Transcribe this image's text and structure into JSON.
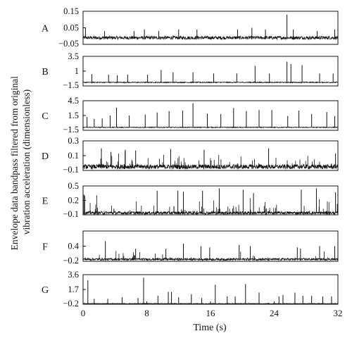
{
  "chart_data": {
    "type": "line",
    "ylabel": "Envelope data bandpass filtered from original vibration acceleration (dimensionless)",
    "xlabel": "Time (s)",
    "xlim": [
      0,
      32
    ],
    "x_ticks": [
      "0",
      "8",
      "16",
      "24",
      "32"
    ],
    "grid": false,
    "panels": [
      {
        "label": "A",
        "ylim": [
          -0.05,
          0.15
        ],
        "y_ticks": [
          "0.15",
          "0.05",
          "−0.05"
        ],
        "baseline": -0.01,
        "noise": 0.01,
        "spikes": [
          [
            0.3,
            0.05
          ],
          [
            2.7,
            0.03
          ],
          [
            6.4,
            0.03
          ],
          [
            7.7,
            0.04
          ],
          [
            9.5,
            0.03
          ],
          [
            12.0,
            0.04
          ],
          [
            14.3,
            0.04
          ],
          [
            19.4,
            0.04
          ],
          [
            21.2,
            0.05
          ],
          [
            22.9,
            0.04
          ],
          [
            25.6,
            0.13
          ],
          [
            26.4,
            0.04
          ],
          [
            29.4,
            0.03
          ],
          [
            31.6,
            0.04
          ]
        ]
      },
      {
        "label": "B",
        "ylim": [
          -1.5,
          3.5
        ],
        "y_ticks": [
          "3.5",
          "1",
          "−1.5"
        ],
        "baseline": -0.9,
        "noise": 0.08,
        "spikes": [
          [
            1.1,
            0.5
          ],
          [
            3.2,
            0.4
          ],
          [
            4.3,
            0.3
          ],
          [
            5.6,
            0.4
          ],
          [
            8.1,
            0.4
          ],
          [
            9.8,
            1.2
          ],
          [
            11.3,
            0.8
          ],
          [
            13.8,
            0.8
          ],
          [
            16.4,
            0.6
          ],
          [
            19.3,
            0.6
          ],
          [
            21.6,
            1.9
          ],
          [
            23.4,
            0.6
          ],
          [
            25.6,
            2.6
          ],
          [
            26.1,
            2.2
          ],
          [
            27.5,
            2.0
          ],
          [
            29.7,
            0.6
          ],
          [
            31.4,
            0.6
          ]
        ]
      },
      {
        "label": "C",
        "ylim": [
          -1.5,
          4.5
        ],
        "y_ticks": [
          "4.5",
          "1.5",
          "−1.5"
        ],
        "baseline": -0.9,
        "noise": 0.08,
        "spikes": [
          [
            0.5,
            1.2
          ],
          [
            1.4,
            0.8
          ],
          [
            2.4,
            0.9
          ],
          [
            3.4,
            1.5
          ],
          [
            4.2,
            3.1
          ],
          [
            5.8,
            1.5
          ],
          [
            7.8,
            1.7
          ],
          [
            9.3,
            2.1
          ],
          [
            10.8,
            2.4
          ],
          [
            12.5,
            2.5
          ],
          [
            13.8,
            4.0
          ],
          [
            15.6,
            1.9
          ],
          [
            17.3,
            1.8
          ],
          [
            18.9,
            3.0
          ],
          [
            20.5,
            2.4
          ],
          [
            22.1,
            2.6
          ],
          [
            23.7,
            2.6
          ],
          [
            25.7,
            1.4
          ],
          [
            27.1,
            2.5
          ],
          [
            28.7,
            1.8
          ],
          [
            30.6,
            2.2
          ],
          [
            31.6,
            1.4
          ]
        ]
      },
      {
        "label": "D",
        "ylim": [
          -0.1,
          0.3
        ],
        "y_ticks": [
          "0.3",
          "0.1",
          "−0.1"
        ],
        "baseline": -0.05,
        "noise": 0.03,
        "random_spikes": 90,
        "random_max": 0.18,
        "spikes": [
          [
            2.3,
            0.2
          ],
          [
            3.5,
            0.15
          ],
          [
            5.3,
            0.18
          ],
          [
            6.6,
            0.17
          ],
          [
            11.0,
            0.19
          ],
          [
            15.2,
            0.18
          ],
          [
            23.3,
            0.2
          ],
          [
            31.7,
            0.13
          ]
        ]
      },
      {
        "label": "E",
        "ylim": [
          -0.1,
          0.5
        ],
        "y_ticks": [
          "0.5",
          "0.2",
          "−0.1"
        ],
        "baseline": -0.06,
        "noise": 0.03,
        "random_spikes": 95,
        "random_max": 0.35,
        "spikes": [
          [
            0.2,
            0.3
          ],
          [
            9.3,
            0.4
          ],
          [
            11.9,
            0.4
          ],
          [
            12.6,
            0.38
          ],
          [
            15.0,
            0.4
          ],
          [
            17.1,
            0.45
          ],
          [
            20.1,
            0.42
          ],
          [
            21.4,
            0.35
          ],
          [
            27.4,
            0.42
          ],
          [
            29.3,
            0.45
          ],
          [
            31.7,
            0.37
          ]
        ]
      },
      {
        "label": "F",
        "ylim": [
          -0.2,
          1.0
        ],
        "y_ticks": [
          "0.4",
          "−0.2"
        ],
        "baseline": -0.12,
        "noise": 0.04,
        "random_spikes": 55,
        "random_max": 0.3,
        "spikes": [
          [
            2.8,
            0.6
          ],
          [
            6.6,
            0.3
          ],
          [
            10.4,
            0.3
          ],
          [
            12.6,
            0.5
          ],
          [
            14.8,
            0.4
          ],
          [
            15.9,
            0.35
          ],
          [
            19.6,
            0.45
          ],
          [
            21.0,
            0.4
          ],
          [
            26.9,
            0.35
          ],
          [
            27.3,
            0.3
          ],
          [
            29.7,
            0.4
          ],
          [
            31.6,
            0.4
          ]
        ]
      },
      {
        "label": "G",
        "ylim": [
          -0.2,
          3.6
        ],
        "y_ticks": [
          "3.6",
          "1.7",
          "−0.2"
        ],
        "baseline": -0.12,
        "noise": 0.04,
        "spikes": [
          [
            0.6,
            2.9
          ],
          [
            1.4,
            0.5
          ],
          [
            3.1,
            0.5
          ],
          [
            4.9,
            0.7
          ],
          [
            6.9,
            0.6
          ],
          [
            7.6,
            3.2
          ],
          [
            9.4,
            0.9
          ],
          [
            10.7,
            1.4
          ],
          [
            11.1,
            1.4
          ],
          [
            12.0,
            0.7
          ],
          [
            13.6,
            1.1
          ],
          [
            14.9,
            0.6
          ],
          [
            16.6,
            2.3
          ],
          [
            18.1,
            0.8
          ],
          [
            19.1,
            0.8
          ],
          [
            20.4,
            2.4
          ],
          [
            22.1,
            1.3
          ],
          [
            24.6,
            0.8
          ],
          [
            25.1,
            1.0
          ],
          [
            26.6,
            1.3
          ],
          [
            27.6,
            0.9
          ],
          [
            28.7,
            0.9
          ],
          [
            30.1,
            0.8
          ],
          [
            31.2,
            0.8
          ]
        ]
      }
    ]
  }
}
